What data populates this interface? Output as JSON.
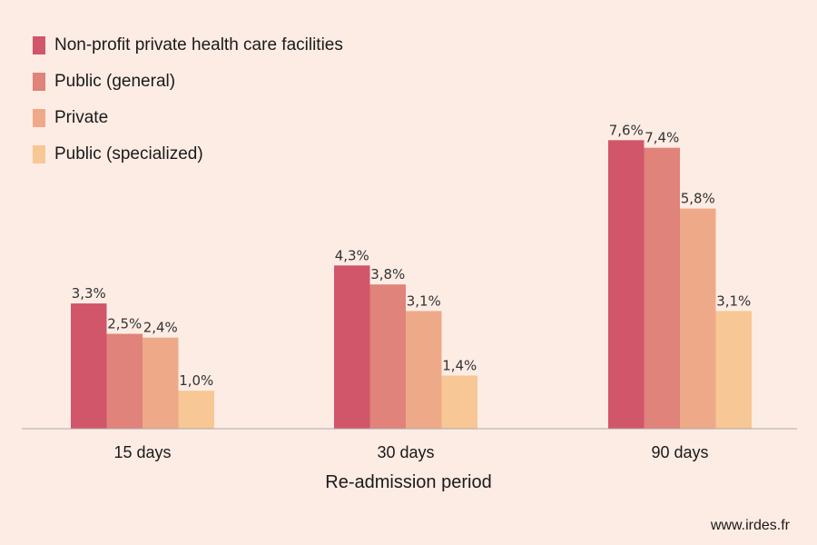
{
  "chart_data": {
    "type": "bar",
    "categories": [
      "15 days",
      "30 days",
      "90 days"
    ],
    "series": [
      {
        "name": "Non-profit private health care facilities",
        "color": "#d1566a",
        "values": [
          3.3,
          4.3,
          7.6
        ],
        "labels": [
          "3,3%",
          "4,3%",
          "7,6%"
        ]
      },
      {
        "name": "Public (general)",
        "color": "#e0837a",
        "values": [
          2.5,
          3.8,
          7.4
        ],
        "labels": [
          "2,5%",
          "3,8%",
          "7,4%"
        ]
      },
      {
        "name": "Private",
        "color": "#eeaa88",
        "values": [
          2.4,
          3.1,
          5.8
        ],
        "labels": [
          "2,4%",
          "3,1%",
          "5,8%"
        ]
      },
      {
        "name": "Public (specialized)",
        "color": "#f7c795",
        "values": [
          1.0,
          1.4,
          3.1
        ],
        "labels": [
          "1,0%",
          "1,4%",
          "3,1%"
        ]
      }
    ],
    "xlabel": "Re-admission period",
    "ylabel": "",
    "ylim": [
      0,
      8
    ],
    "grid": false,
    "legend": "top-left"
  },
  "footer": "www.irdes.fr"
}
